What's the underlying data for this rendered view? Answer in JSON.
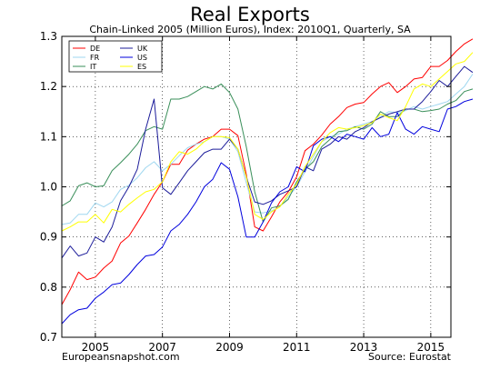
{
  "chart_data": {
    "type": "line",
    "title": "Real Exports",
    "subtitle": "Chain-Linked 2005 (Million Euros), Index: 2010Q1, Quarterly, SA",
    "source_left": "Europeansnapshot.com",
    "source_right": "Source: Eurostat",
    "xlim": [
      2004.0,
      2015.6
    ],
    "ylim": [
      0.7,
      1.3
    ],
    "x_ticks": [
      2005,
      2007,
      2009,
      2011,
      2013,
      2015
    ],
    "x_tick_labels": [
      "2005",
      "2007",
      "2009",
      "2011",
      "2013",
      "2015"
    ],
    "y_ticks": [
      0.7,
      0.8,
      0.9,
      1.0,
      1.1,
      1.2,
      1.3
    ],
    "y_tick_labels": [
      "0.7",
      "0.8",
      "0.9",
      "1.0",
      "1.1",
      "1.2",
      "1.3"
    ],
    "grid": true,
    "legend_position": "top-left",
    "x_start": 2004.0,
    "x_step": 0.25,
    "series": [
      {
        "name": "DE",
        "color": "#ff0000",
        "values": [
          0.765,
          0.795,
          0.83,
          0.815,
          0.82,
          0.838,
          0.852,
          0.888,
          0.902,
          0.928,
          0.955,
          0.985,
          1.01,
          1.045,
          1.045,
          1.073,
          1.085,
          1.095,
          1.1,
          1.115,
          1.115,
          1.102,
          1.025,
          0.92,
          0.912,
          0.94,
          0.97,
          0.99,
          1.02,
          1.072,
          1.085,
          1.103,
          1.125,
          1.14,
          1.158,
          1.165,
          1.168,
          1.185,
          1.2,
          1.208,
          1.188,
          1.2,
          1.215,
          1.218,
          1.24,
          1.24,
          1.252,
          1.27,
          1.285,
          1.295
        ]
      },
      {
        "name": "FR",
        "color": "#9fd7f0",
        "values": [
          0.925,
          0.928,
          0.945,
          0.945,
          0.968,
          0.96,
          0.97,
          0.995,
          1.003,
          1.018,
          1.038,
          1.05,
          1.032,
          1.045,
          1.062,
          1.078,
          1.085,
          1.09,
          1.1,
          1.1,
          1.095,
          1.07,
          1.008,
          0.95,
          0.948,
          0.952,
          0.96,
          0.98,
          1.0,
          1.03,
          1.06,
          1.09,
          1.1,
          1.105,
          1.115,
          1.12,
          1.125,
          1.13,
          1.14,
          1.15,
          1.148,
          1.152,
          1.16,
          1.155,
          1.16,
          1.165,
          1.17,
          1.185,
          1.2,
          1.225
        ]
      },
      {
        "name": "IT",
        "color": "#3a8f5a",
        "values": [
          0.962,
          0.972,
          1.002,
          1.008,
          1.0,
          1.002,
          1.032,
          1.048,
          1.065,
          1.085,
          1.112,
          1.12,
          1.115,
          1.175,
          1.175,
          1.18,
          1.19,
          1.2,
          1.195,
          1.205,
          1.188,
          1.155,
          1.08,
          0.99,
          0.93,
          0.958,
          0.962,
          0.975,
          1.01,
          1.035,
          1.05,
          1.08,
          1.095,
          1.11,
          1.112,
          1.12,
          1.115,
          1.125,
          1.15,
          1.14,
          1.14,
          1.155,
          1.155,
          1.15,
          1.152,
          1.155,
          1.165,
          1.172,
          1.19,
          1.195
        ]
      },
      {
        "name": "UK",
        "color": "#1c1c9a",
        "values": [
          0.858,
          0.882,
          0.862,
          0.868,
          0.9,
          0.89,
          0.92,
          0.972,
          1.0,
          1.035,
          1.115,
          1.175,
          0.998,
          0.985,
          1.008,
          1.032,
          1.05,
          1.068,
          1.075,
          1.075,
          1.095,
          1.075,
          1.02,
          0.97,
          0.965,
          0.972,
          0.985,
          0.992,
          1.0,
          1.04,
          1.032,
          1.075,
          1.085,
          1.1,
          1.095,
          1.11,
          1.118,
          1.13,
          1.138,
          1.145,
          1.15,
          1.155,
          1.155,
          1.17,
          1.19,
          1.212,
          1.2,
          1.22,
          1.24,
          1.228
        ]
      },
      {
        "name": "US",
        "color": "#0000dd",
        "values": [
          0.727,
          0.745,
          0.755,
          0.758,
          0.778,
          0.79,
          0.805,
          0.808,
          0.825,
          0.845,
          0.862,
          0.865,
          0.88,
          0.912,
          0.925,
          0.945,
          0.97,
          1.0,
          1.015,
          1.048,
          1.035,
          0.98,
          0.9,
          0.9,
          0.93,
          0.968,
          0.99,
          1.0,
          1.04,
          1.03,
          1.082,
          1.095,
          1.1,
          1.09,
          1.105,
          1.1,
          1.095,
          1.118,
          1.1,
          1.105,
          1.148,
          1.115,
          1.105,
          1.12,
          1.115,
          1.11,
          1.155,
          1.16,
          1.17,
          1.175
        ]
      },
      {
        "name": "ES",
        "color": "#ffff00",
        "values": [
          0.912,
          0.92,
          0.93,
          0.93,
          0.945,
          0.928,
          0.955,
          0.95,
          0.965,
          0.978,
          0.99,
          0.995,
          1.01,
          1.05,
          1.07,
          1.065,
          1.075,
          1.09,
          1.1,
          1.1,
          1.098,
          1.075,
          1.02,
          0.945,
          0.935,
          0.95,
          0.96,
          0.985,
          1.005,
          1.04,
          1.065,
          1.09,
          1.108,
          1.118,
          1.115,
          1.118,
          1.122,
          1.128,
          1.145,
          1.138,
          1.132,
          1.16,
          1.195,
          1.205,
          1.2,
          1.215,
          1.23,
          1.245,
          1.25,
          1.268
        ]
      }
    ]
  }
}
